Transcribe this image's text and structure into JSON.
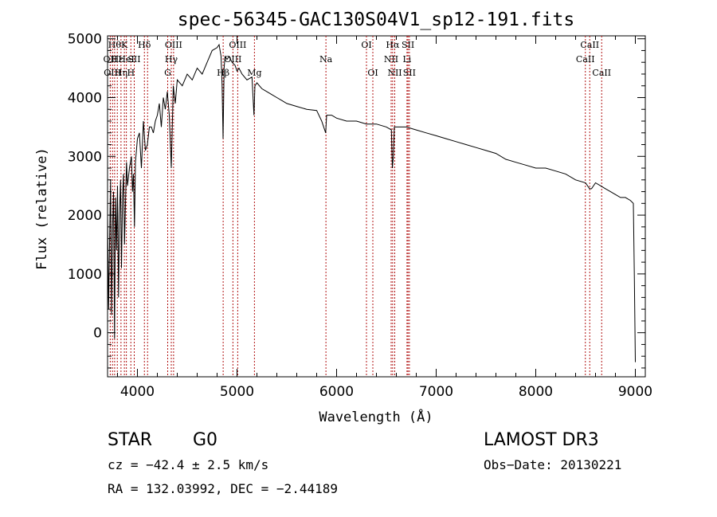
{
  "chart_data": {
    "type": "line",
    "title": "spec-56345-GAC130S04V1_sp12-191.fits",
    "xlabel": "Wavelength (Å)",
    "ylabel": "Flux (relative)",
    "xlim": [
      3700,
      9100
    ],
    "ylim": [
      -750,
      5050
    ],
    "xticks": [
      4000,
      5000,
      6000,
      7000,
      8000,
      9000
    ],
    "yticks": [
      0,
      1000,
      2000,
      3000,
      4000,
      5000
    ],
    "grid": false,
    "series": [
      {
        "name": "flux",
        "x": [
          3700,
          3710,
          3720,
          3730,
          3740,
          3750,
          3760,
          3770,
          3780,
          3790,
          3800,
          3810,
          3820,
          3830,
          3840,
          3850,
          3860,
          3870,
          3880,
          3890,
          3900,
          3920,
          3940,
          3950,
          3960,
          3970,
          3980,
          4000,
          4020,
          4040,
          4060,
          4080,
          4100,
          4120,
          4140,
          4160,
          4180,
          4200,
          4220,
          4240,
          4260,
          4280,
          4300,
          4320,
          4340,
          4360,
          4380,
          4400,
          4450,
          4500,
          4550,
          4600,
          4650,
          4700,
          4750,
          4800,
          4820,
          4840,
          4850,
          4860,
          4870,
          4880,
          4900,
          4920,
          4950,
          4980,
          5000,
          5020,
          5050,
          5100,
          5150,
          5170,
          5180,
          5200,
          5250,
          5300,
          5350,
          5400,
          5450,
          5500,
          5600,
          5700,
          5800,
          5850,
          5890,
          5900,
          5950,
          6000,
          6100,
          6200,
          6300,
          6400,
          6500,
          6550,
          6560,
          6570,
          6580,
          6600,
          6650,
          6700,
          6800,
          6900,
          7000,
          7100,
          7200,
          7300,
          7400,
          7500,
          7600,
          7700,
          7800,
          7900,
          8000,
          8100,
          8200,
          8300,
          8400,
          8500,
          8540,
          8560,
          8600,
          8650,
          8700,
          8750,
          8800,
          8850,
          8900,
          8950,
          8980,
          8990,
          9000
        ],
        "y": [
          2000,
          400,
          1500,
          2600,
          300,
          1800,
          2400,
          -100,
          2300,
          1400,
          2500,
          600,
          2000,
          2600,
          1100,
          2300,
          2700,
          1500,
          2200,
          2900,
          2500,
          2800,
          3000,
          2400,
          2700,
          1800,
          2900,
          3300,
          3400,
          2800,
          3600,
          3100,
          3200,
          3500,
          3500,
          3400,
          3600,
          3700,
          3900,
          3500,
          4000,
          3800,
          4100,
          3700,
          2800,
          4200,
          3900,
          4300,
          4200,
          4400,
          4300,
          4500,
          4400,
          4600,
          4800,
          4850,
          4900,
          4700,
          4200,
          3300,
          4500,
          4700,
          4650,
          4700,
          4600,
          4550,
          4450,
          4500,
          4400,
          4300,
          4350,
          3700,
          4200,
          4250,
          4150,
          4100,
          4050,
          4000,
          3950,
          3900,
          3850,
          3800,
          3780,
          3600,
          3400,
          3700,
          3700,
          3650,
          3600,
          3600,
          3550,
          3550,
          3500,
          3450,
          2800,
          3000,
          3500,
          3500,
          3500,
          3500,
          3450,
          3400,
          3350,
          3300,
          3250,
          3200,
          3150,
          3100,
          3050,
          2950,
          2900,
          2850,
          2800,
          2800,
          2750,
          2700,
          2600,
          2550,
          2450,
          2450,
          2550,
          2500,
          2450,
          2400,
          2350,
          2300,
          2300,
          2250,
          2200,
          900,
          -500
        ]
      }
    ],
    "lines": [
      {
        "wave": 3727,
        "label": "OII",
        "row": 1
      },
      {
        "wave": 3750,
        "label": "OIII",
        "row": 2
      },
      {
        "wave": 3771,
        "label": "Hθ",
        "row": 0
      },
      {
        "wave": 3798,
        "label": "Hε",
        "row": 1
      },
      {
        "wave": 3835,
        "label": "Hη",
        "row": 2
      },
      {
        "wave": 3869,
        "label": "K",
        "row": 0
      },
      {
        "wave": 3889,
        "label": "HeI",
        "row": 1
      },
      {
        "wave": 3934,
        "label": "H",
        "row": 2
      },
      {
        "wave": 3968,
        "label": "SII",
        "row": 1
      },
      {
        "wave": 4070,
        "label": "Hδ",
        "row": 0
      },
      {
        "wave": 4102,
        "label": "",
        "row": 0
      },
      {
        "wave": 4304,
        "label": "G",
        "row": 2
      },
      {
        "wave": 4340,
        "label": "Hγ",
        "row": 1
      },
      {
        "wave": 4363,
        "label": "OIII",
        "row": 0
      },
      {
        "wave": 4861,
        "label": "Hβ",
        "row": 2
      },
      {
        "wave": 4959,
        "label": "OIII",
        "row": 1
      },
      {
        "wave": 5007,
        "label": "OIII",
        "row": 0
      },
      {
        "wave": 5175,
        "label": "Mg",
        "row": 2
      },
      {
        "wave": 5893,
        "label": "Na",
        "row": 1
      },
      {
        "wave": 6300,
        "label": "OI",
        "row": 0
      },
      {
        "wave": 6364,
        "label": "OI",
        "row": 2
      },
      {
        "wave": 6548,
        "label": "NII",
        "row": 1
      },
      {
        "wave": 6563,
        "label": "Hα",
        "row": 0
      },
      {
        "wave": 6584,
        "label": "NII",
        "row": 2
      },
      {
        "wave": 6707,
        "label": "Li",
        "row": 1
      },
      {
        "wave": 6717,
        "label": "SII",
        "row": 0
      },
      {
        "wave": 6731,
        "label": "SII",
        "row": 2
      },
      {
        "wave": 8498,
        "label": "CaII",
        "row": 1
      },
      {
        "wave": 8542,
        "label": "CaII",
        "row": 0
      },
      {
        "wave": 8662,
        "label": "CaII",
        "row": 2
      }
    ]
  },
  "info": {
    "class": "STAR",
    "subclass": "G0",
    "survey": "LAMOST DR3",
    "cz": "cz = −42.4 ± 2.5 km/s",
    "obs_date": "Obs−Date: 20130221",
    "coords": "RA = 132.03992, DEC =  −2.44189"
  }
}
